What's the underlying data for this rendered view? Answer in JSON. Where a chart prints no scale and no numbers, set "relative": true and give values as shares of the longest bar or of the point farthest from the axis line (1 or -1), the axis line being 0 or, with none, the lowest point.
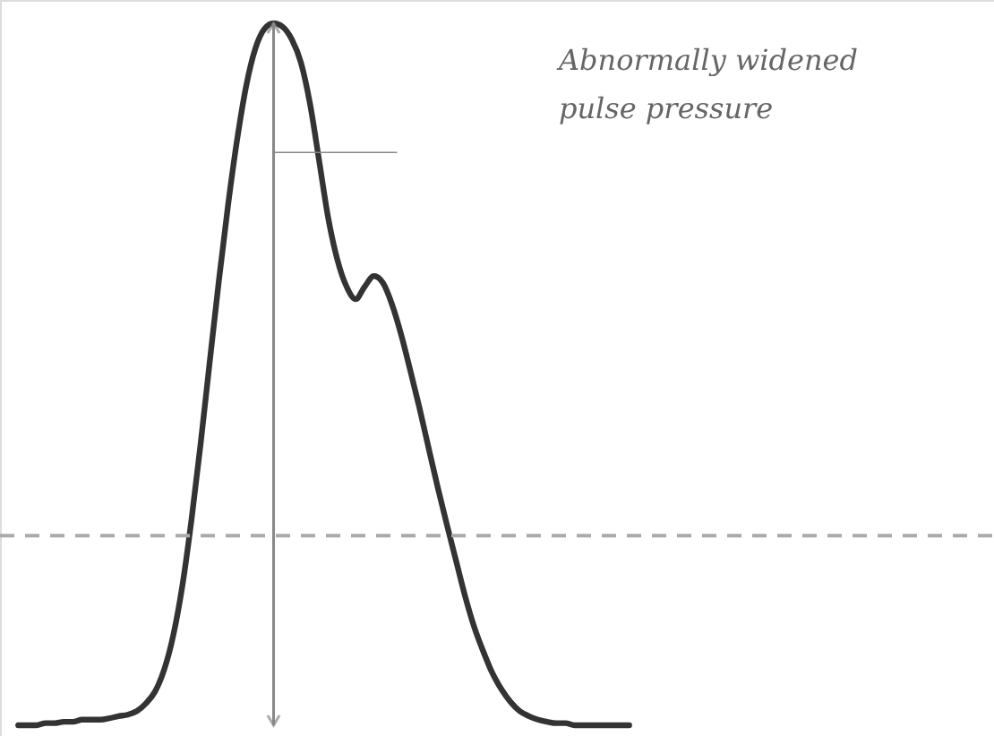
{
  "chart_data": {
    "type": "line",
    "relative": true,
    "categories": [
      null,
      null,
      null,
      null,
      null,
      null,
      null,
      null,
      null,
      null,
      null,
      null,
      null,
      null,
      null,
      null,
      null,
      null,
      null,
      null,
      null,
      null,
      null,
      null,
      null,
      null,
      null,
      null,
      null,
      null,
      null,
      null,
      null,
      null,
      null,
      null,
      null,
      null,
      null,
      null,
      null,
      null,
      null,
      null,
      null,
      null,
      null,
      null,
      null,
      null,
      null,
      null,
      null,
      null,
      null,
      null,
      null,
      null,
      null,
      null,
      null,
      null,
      null,
      null,
      null,
      null,
      null,
      null
    ],
    "series": [
      {
        "color": "#333333",
        "values": [
          0,
          0,
          0,
          0.003,
          0.003,
          0.005,
          0.005,
          0.008,
          0.008,
          0.008,
          0.01,
          0.013,
          0.015,
          0.02,
          0.031,
          0.048,
          0.079,
          0.128,
          0.199,
          0.293,
          0.401,
          0.518,
          0.633,
          0.74,
          0.834,
          0.911,
          0.964,
          0.992,
          1,
          0.995,
          0.977,
          0.944,
          0.885,
          0.804,
          0.722,
          0.663,
          0.625,
          0.607,
          0.625,
          0.64,
          0.63,
          0.599,
          0.556,
          0.505,
          0.452,
          0.395,
          0.339,
          0.286,
          0.235,
          0.184,
          0.14,
          0.105,
          0.074,
          0.051,
          0.033,
          0.02,
          0.013,
          0.008,
          0.005,
          0.003,
          0.003,
          0,
          0,
          0,
          0,
          0,
          0,
          0
        ]
      }
    ],
    "ref_lines": [
      {
        "axis": "y",
        "value": 0.27,
        "color": "#aaaaaa",
        "line_style": "dashed"
      }
    ],
    "annotations": [
      "Abnormally  widened\npulse pressure"
    ],
    "line_style": "solid",
    "marker": "none"
  }
}
